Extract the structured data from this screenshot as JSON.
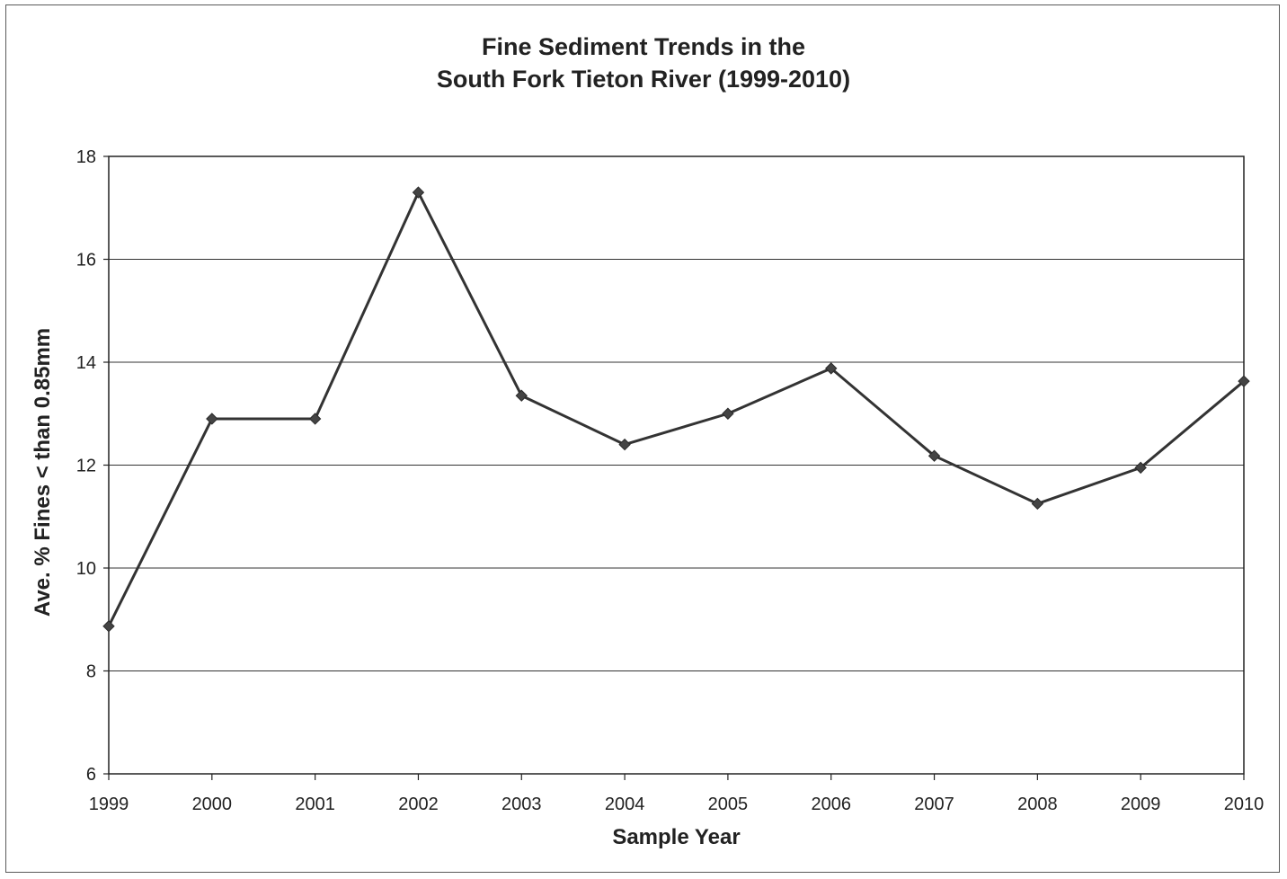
{
  "chart_data": {
    "type": "line",
    "title": "Fine Sediment Trends in the",
    "subtitle": "South Fork Tieton River (1999-2010)",
    "xlabel": "Sample Year",
    "ylabel": "Ave. % Fines < than 0.85mm",
    "categories": [
      "1999",
      "2000",
      "2001",
      "2002",
      "2003",
      "2004",
      "2005",
      "2006",
      "2007",
      "2008",
      "2009",
      "2010"
    ],
    "series": [
      {
        "values": [
          8.87,
          12.9,
          12.9,
          17.3,
          13.35,
          12.4,
          13.0,
          13.88,
          12.18,
          11.25,
          11.95,
          13.63
        ]
      }
    ],
    "ylim": [
      6,
      18
    ],
    "yticks": [
      6,
      8,
      10,
      12,
      14,
      16,
      18
    ],
    "grid": true,
    "legend": "none",
    "colors": {
      "line": "#333333",
      "marker": "#444444",
      "grid": "#333333",
      "axis": "#222222"
    }
  }
}
